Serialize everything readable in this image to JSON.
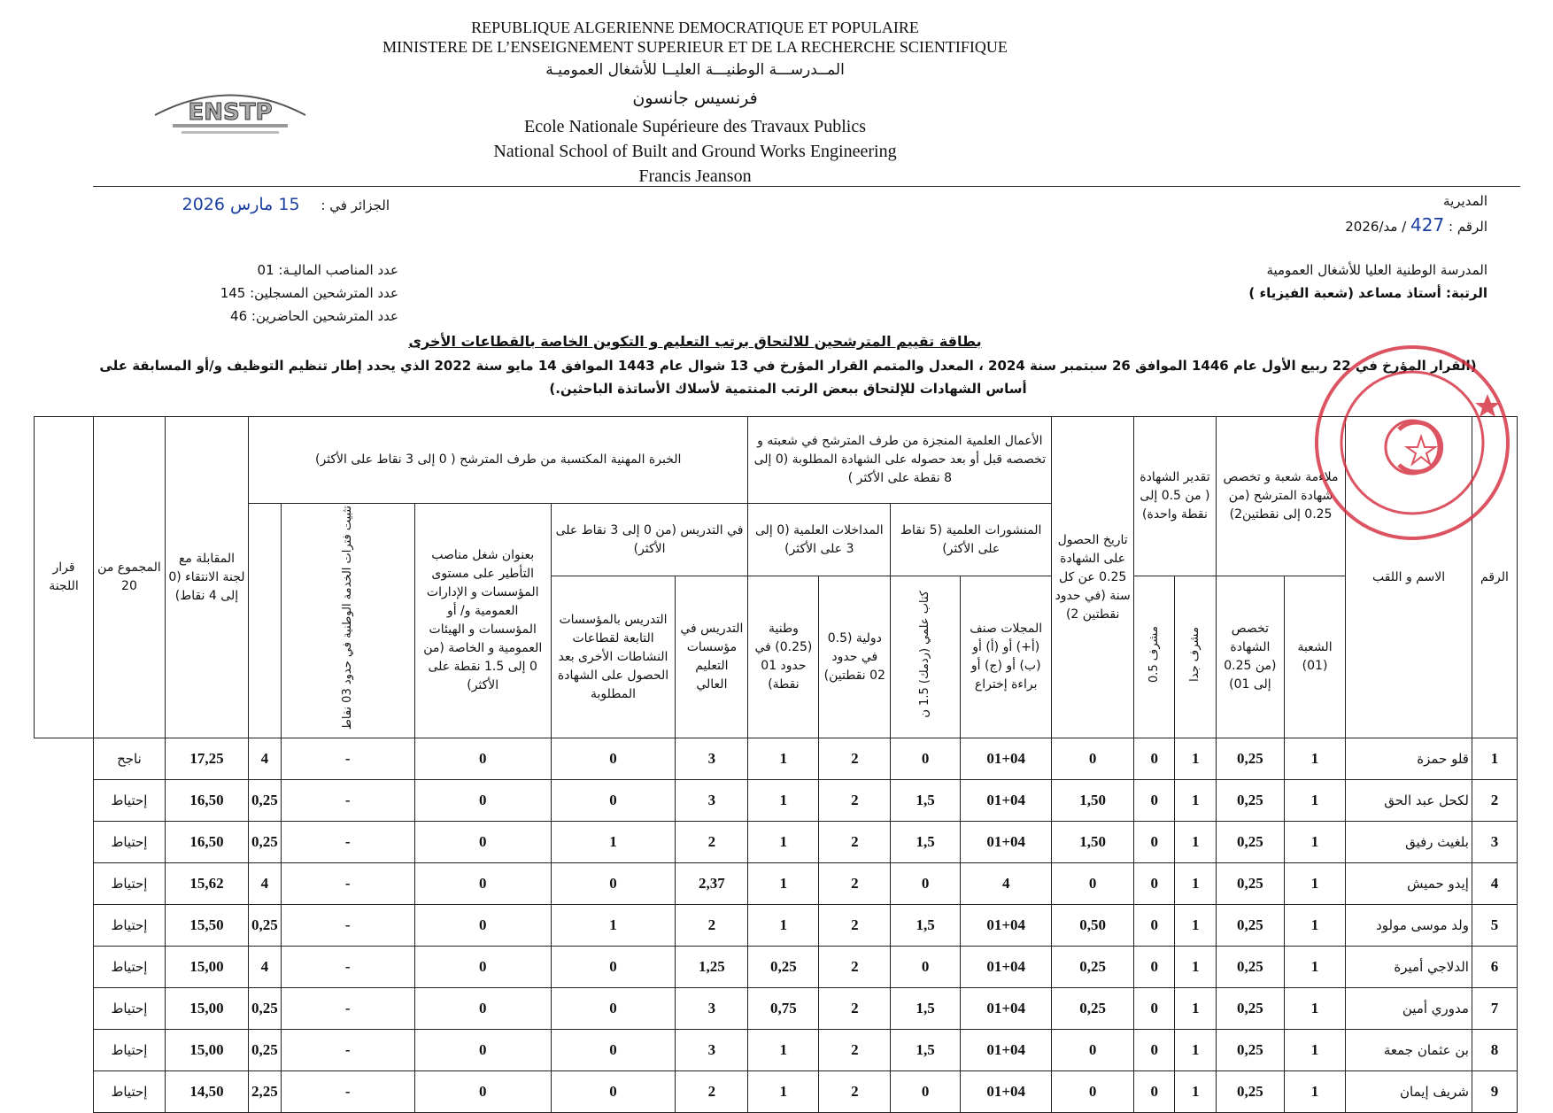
{
  "header": {
    "line1": "REPUBLIQUE ALGERIENNE DEMOCRATIQUE ET POPULAIRE",
    "line2": "MINISTERE DE L’ENSEIGNEMENT SUPERIEUR ET DE LA RECHERCHE SCIENTIFIQUE",
    "line3_ar": "المــدرســـة الوطنيـــة العليــا للأشغال العموميـة",
    "line4_ar": "فرنسيس جانسون",
    "line5": "Ecole Nationale Supérieure des Travaux Publics",
    "line6": "National School of Built and Ground Works Engineering",
    "line7": "Francis Jeanson",
    "logo_text": "ENSTP"
  },
  "meta": {
    "directorate": "المديرية",
    "ref_label": "الرقم :",
    "ref_number": "427",
    "ref_suffix": "/ مد/2026",
    "place_label": "الجزائر في :",
    "date_handwritten": "15 مارس 2026",
    "school": "المدرسة الوطنية العليا للأشغال العمومية",
    "rank": "الرتبة: أستاذ مساعد (شعبة الفيزياء )",
    "posts": "عدد المناصب الماليـة: 01",
    "registered": "عدد المترشحين المسجلين: 145",
    "present": "عدد المترشحين الحاضرين: 46"
  },
  "title": "بطاقة تقييم المترشحين للالتحاق برتب التعليم و التكوين الخاصة بالقطاعات الأخرى",
  "decree": "(القرار المؤرخ في 22 ربيع الأول عام 1446 الموافق 26 سبتمبر سنة 2024 ، المعدل والمتمم القرار المؤرخ في 13 شوال عام 1443 الموافق 14 مايو سنة 2022 الذي يحدد إطار تنظيم التوظيف و/أو المسابقة على أساس الشهادات للإلتحاق ببعض الرتب المنتمية لأسلاك الأساتذة الباحثين.)",
  "table": {
    "h_num": "الرقم",
    "h_name": "الاسم و اللقب",
    "h_fit": "ملاءمة شعبة و تخصص شهادة المترشح (من 0.25 إلى نقطتين2)",
    "h_fit_branch": "الشعبة (01)",
    "h_fit_spec": "تخصص الشهادة (من 0.25 إلى 01)",
    "h_grade": "تقدير الشهادة ( من 0.5 إلى نقطة واحدة)",
    "h_grade_vh": "مشرف جدا",
    "h_grade_h": "مشرف 0.5",
    "h_date": "تاريخ الحصول على الشهادة 0.25 عن كل سنة (في حدود نقطتين 2)",
    "h_sci": "الأعمال العلمية المنجزة من طرف المترشح في شعبته و تخصصه قبل أو بعد حصوله على الشهادة المطلوبة (0 إلى 8 نقطة على الأكثر )",
    "h_pub": "المنشورات العلمية (5 نقاط على الأكثر)",
    "h_pub_journals": "المجلات صنف (أ+) أو (أ) أو (ب) أو (ج) أو براءة إختراع",
    "h_pub_book": "كتاب علمي (ردمك) 1.5 ن",
    "h_conf": "المداخلات العلمية (0 إلى 3 على الأكثر)",
    "h_conf_intl": "دولية (0.5 في حدود 02 نقطتين)",
    "h_conf_nat": "وطنية (0.25) في حدود 01 نقطة)",
    "h_exp": "الخبرة المهنية المكتسبة من طرف المترشح ( 0 إلى 3 نقاط على الأكثر)",
    "h_teach": "في التدريس (من 0 إلى 3 نقاط على الأكثر)",
    "h_teach_uni": "التدريس في مؤسسات التعليم العالي",
    "h_teach_other": "التدريس بالمؤسسات التابعة لقطاعات النشاطات الأخرى بعد الحصول على الشهادة المطلوبة",
    "h_mgmt": "بعنوان شغل مناصب التأطير على مستوى المؤسسات و الإدارات العمومية و/ أو المؤسسات و الهيئات العمومية و الخاصة (من 0 إلى 1.5 نقطة على الأكثر)",
    "h_civic": "تثبيت فترات الخدمة الوطنية في حدود 03 نقاط",
    "h_interview": "المقابلة مع لجنة الانتقاء (0 إلى 4 نقاط)",
    "h_total": "المجموع من 20",
    "h_decision": "قرار اللجنة",
    "rows": [
      [
        "1",
        "قلو حمزة",
        "1",
        "0,25",
        "1",
        "0",
        "0",
        "01+04",
        "0",
        "2",
        "1",
        "3",
        "0",
        "0",
        "-",
        "4",
        "17,25",
        "ناجح"
      ],
      [
        "2",
        "لكحل عبد الحق",
        "1",
        "0,25",
        "1",
        "0",
        "1,50",
        "01+04",
        "1,5",
        "2",
        "1",
        "3",
        "0",
        "0",
        "-",
        "0,25",
        "16,50",
        "إحتياط"
      ],
      [
        "3",
        "بلغيث رفيق",
        "1",
        "0,25",
        "1",
        "0",
        "1,50",
        "01+04",
        "1,5",
        "2",
        "1",
        "2",
        "1",
        "0",
        "-",
        "0,25",
        "16,50",
        "إحتياط"
      ],
      [
        "4",
        "إيدو حميش",
        "1",
        "0,25",
        "1",
        "0",
        "0",
        "4",
        "0",
        "2",
        "1",
        "2,37",
        "0",
        "0",
        "-",
        "4",
        "15,62",
        "إحتياط"
      ],
      [
        "5",
        "ولد موسى مولود",
        "1",
        "0,25",
        "1",
        "0",
        "0,50",
        "01+04",
        "1,5",
        "2",
        "1",
        "2",
        "1",
        "0",
        "-",
        "0,25",
        "15,50",
        "إحتياط"
      ],
      [
        "6",
        "الدلاجي أميرة",
        "1",
        "0,25",
        "1",
        "0",
        "0,25",
        "01+04",
        "0",
        "2",
        "0,25",
        "1,25",
        "0",
        "0",
        "-",
        "4",
        "15,00",
        "إحتياط"
      ],
      [
        "7",
        "مدوري أمين",
        "1",
        "0,25",
        "1",
        "0",
        "0,25",
        "01+04",
        "1,5",
        "2",
        "0,75",
        "3",
        "0",
        "0",
        "-",
        "0,25",
        "15,00",
        "إحتياط"
      ],
      [
        "8",
        "بن عثمان جمعة",
        "1",
        "0,25",
        "1",
        "0",
        "0",
        "01+04",
        "1,5",
        "2",
        "1",
        "3",
        "0",
        "0",
        "-",
        "0,25",
        "15,00",
        "إحتياط"
      ],
      [
        "9",
        "شريف إيمان",
        "1",
        "0,25",
        "1",
        "0",
        "0",
        "01+04",
        "0",
        "2",
        "1",
        "2",
        "0",
        "0",
        "-",
        "2,25",
        "14,50",
        "إحتياط"
      ]
    ]
  },
  "colors": {
    "ink": "#111111",
    "handwriting": "#1b3fa0",
    "stamp": "#d42a3a"
  }
}
